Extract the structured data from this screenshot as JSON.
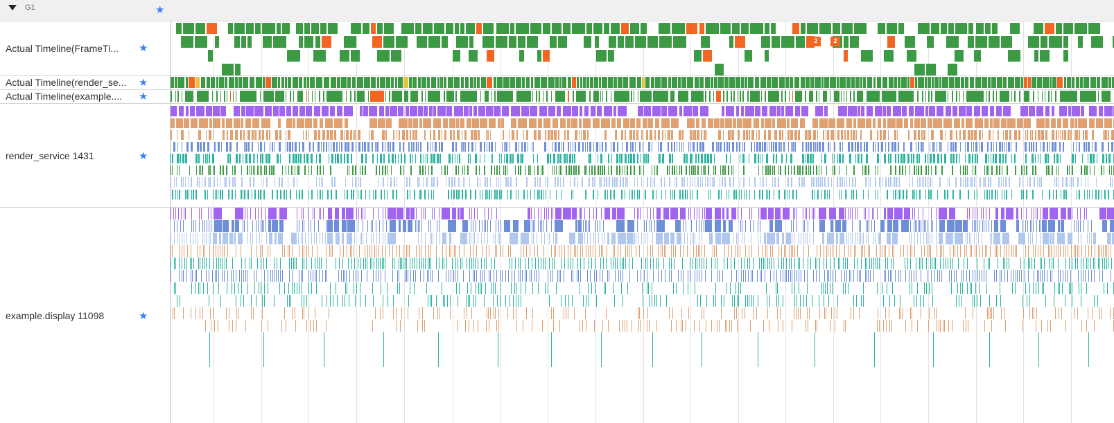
{
  "group": {
    "title": "G1",
    "star_icon": "star-icon"
  },
  "rows": [
    {
      "id": "frametimeline",
      "label": "Actual Timeline(FrameTi..."
    },
    {
      "id": "render-service-timeline",
      "label": "Actual Timeline(render_se..."
    },
    {
      "id": "example-timeline",
      "label": "Actual Timeline(example...."
    },
    {
      "id": "render-service-process",
      "label": "render_service 1431"
    },
    {
      "id": "example-display-process",
      "label": "example.display 11098"
    }
  ],
  "frame_badges": [
    "2",
    "2"
  ],
  "colors": {
    "frame_normal": "#3c9a45",
    "frame_janky": "#f26522",
    "frame_yellow": "#e8c340",
    "thread_purple": "#a064f0",
    "thread_orange": "#e0a070",
    "thread_blue": "#6e8fd8",
    "thread_teal": "#2bb5a0",
    "thread_light": "#b0c8ee"
  }
}
